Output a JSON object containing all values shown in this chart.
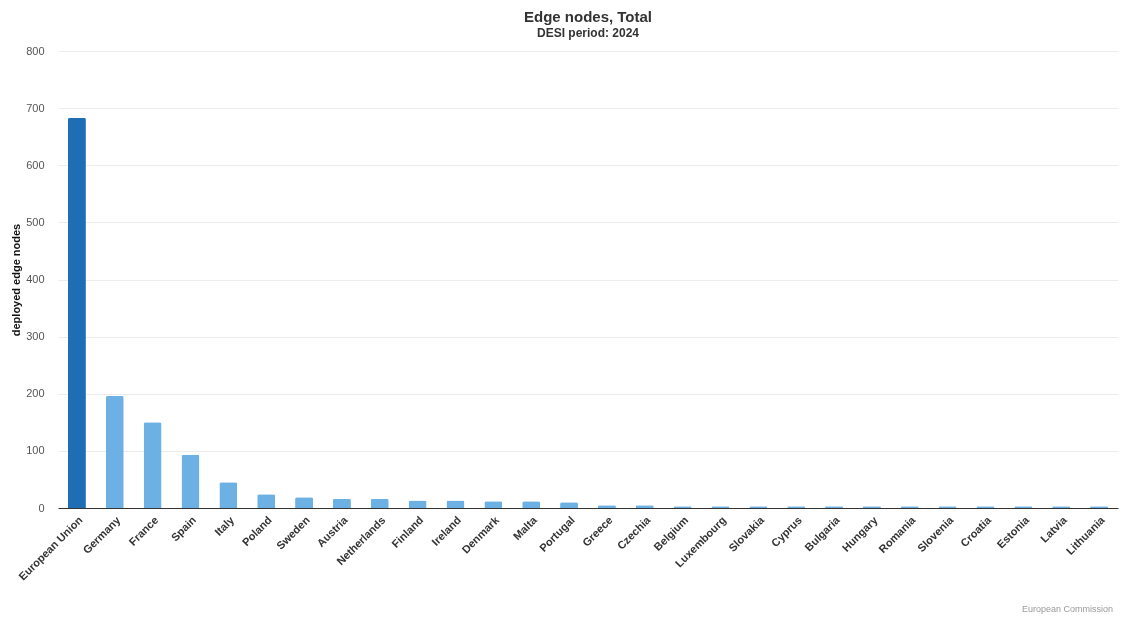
{
  "chart_data": {
    "type": "bar",
    "title": "Edge nodes, Total",
    "subtitle": "DESI period: 2024",
    "ylabel": "deployed edge nodes",
    "categories": [
      "European Union",
      "Germany",
      "France",
      "Spain",
      "Italy",
      "Poland",
      "Sweden",
      "Austria",
      "Netherlands",
      "Finland",
      "Ireland",
      "Denmark",
      "Malta",
      "Portugal",
      "Greece",
      "Czechia",
      "Belgium",
      "Luxembourg",
      "Slovakia",
      "Cyprus",
      "Bulgaria",
      "Hungary",
      "Romania",
      "Slovenia",
      "Croatia",
      "Estonia",
      "Latvia",
      "Lithuania"
    ],
    "values": [
      683,
      196,
      150,
      93,
      45,
      24,
      19,
      16,
      16,
      13,
      13,
      12,
      12,
      10,
      5,
      5,
      3,
      3,
      3,
      3,
      3,
      3,
      3,
      3,
      3,
      3,
      3,
      3
    ],
    "colors": [
      "#1f6db4",
      "#6db1e4",
      "#6db1e4",
      "#6db1e4",
      "#6db1e4",
      "#6db1e4",
      "#6db1e4",
      "#6db1e4",
      "#6db1e4",
      "#6db1e4",
      "#6db1e4",
      "#6db1e4",
      "#6db1e4",
      "#6db1e4",
      "#6db1e4",
      "#6db1e4",
      "#6db1e4",
      "#6db1e4",
      "#6db1e4",
      "#6db1e4",
      "#6db1e4",
      "#6db1e4",
      "#6db1e4",
      "#6db1e4",
      "#6db1e4",
      "#6db1e4",
      "#6db1e4",
      "#6db1e4"
    ],
    "ylim": [
      0,
      800
    ],
    "yticks": [
      0,
      100,
      200,
      300,
      400,
      500,
      600,
      700,
      800
    ],
    "grid": "y",
    "annotations": [
      "European Commission"
    ]
  }
}
